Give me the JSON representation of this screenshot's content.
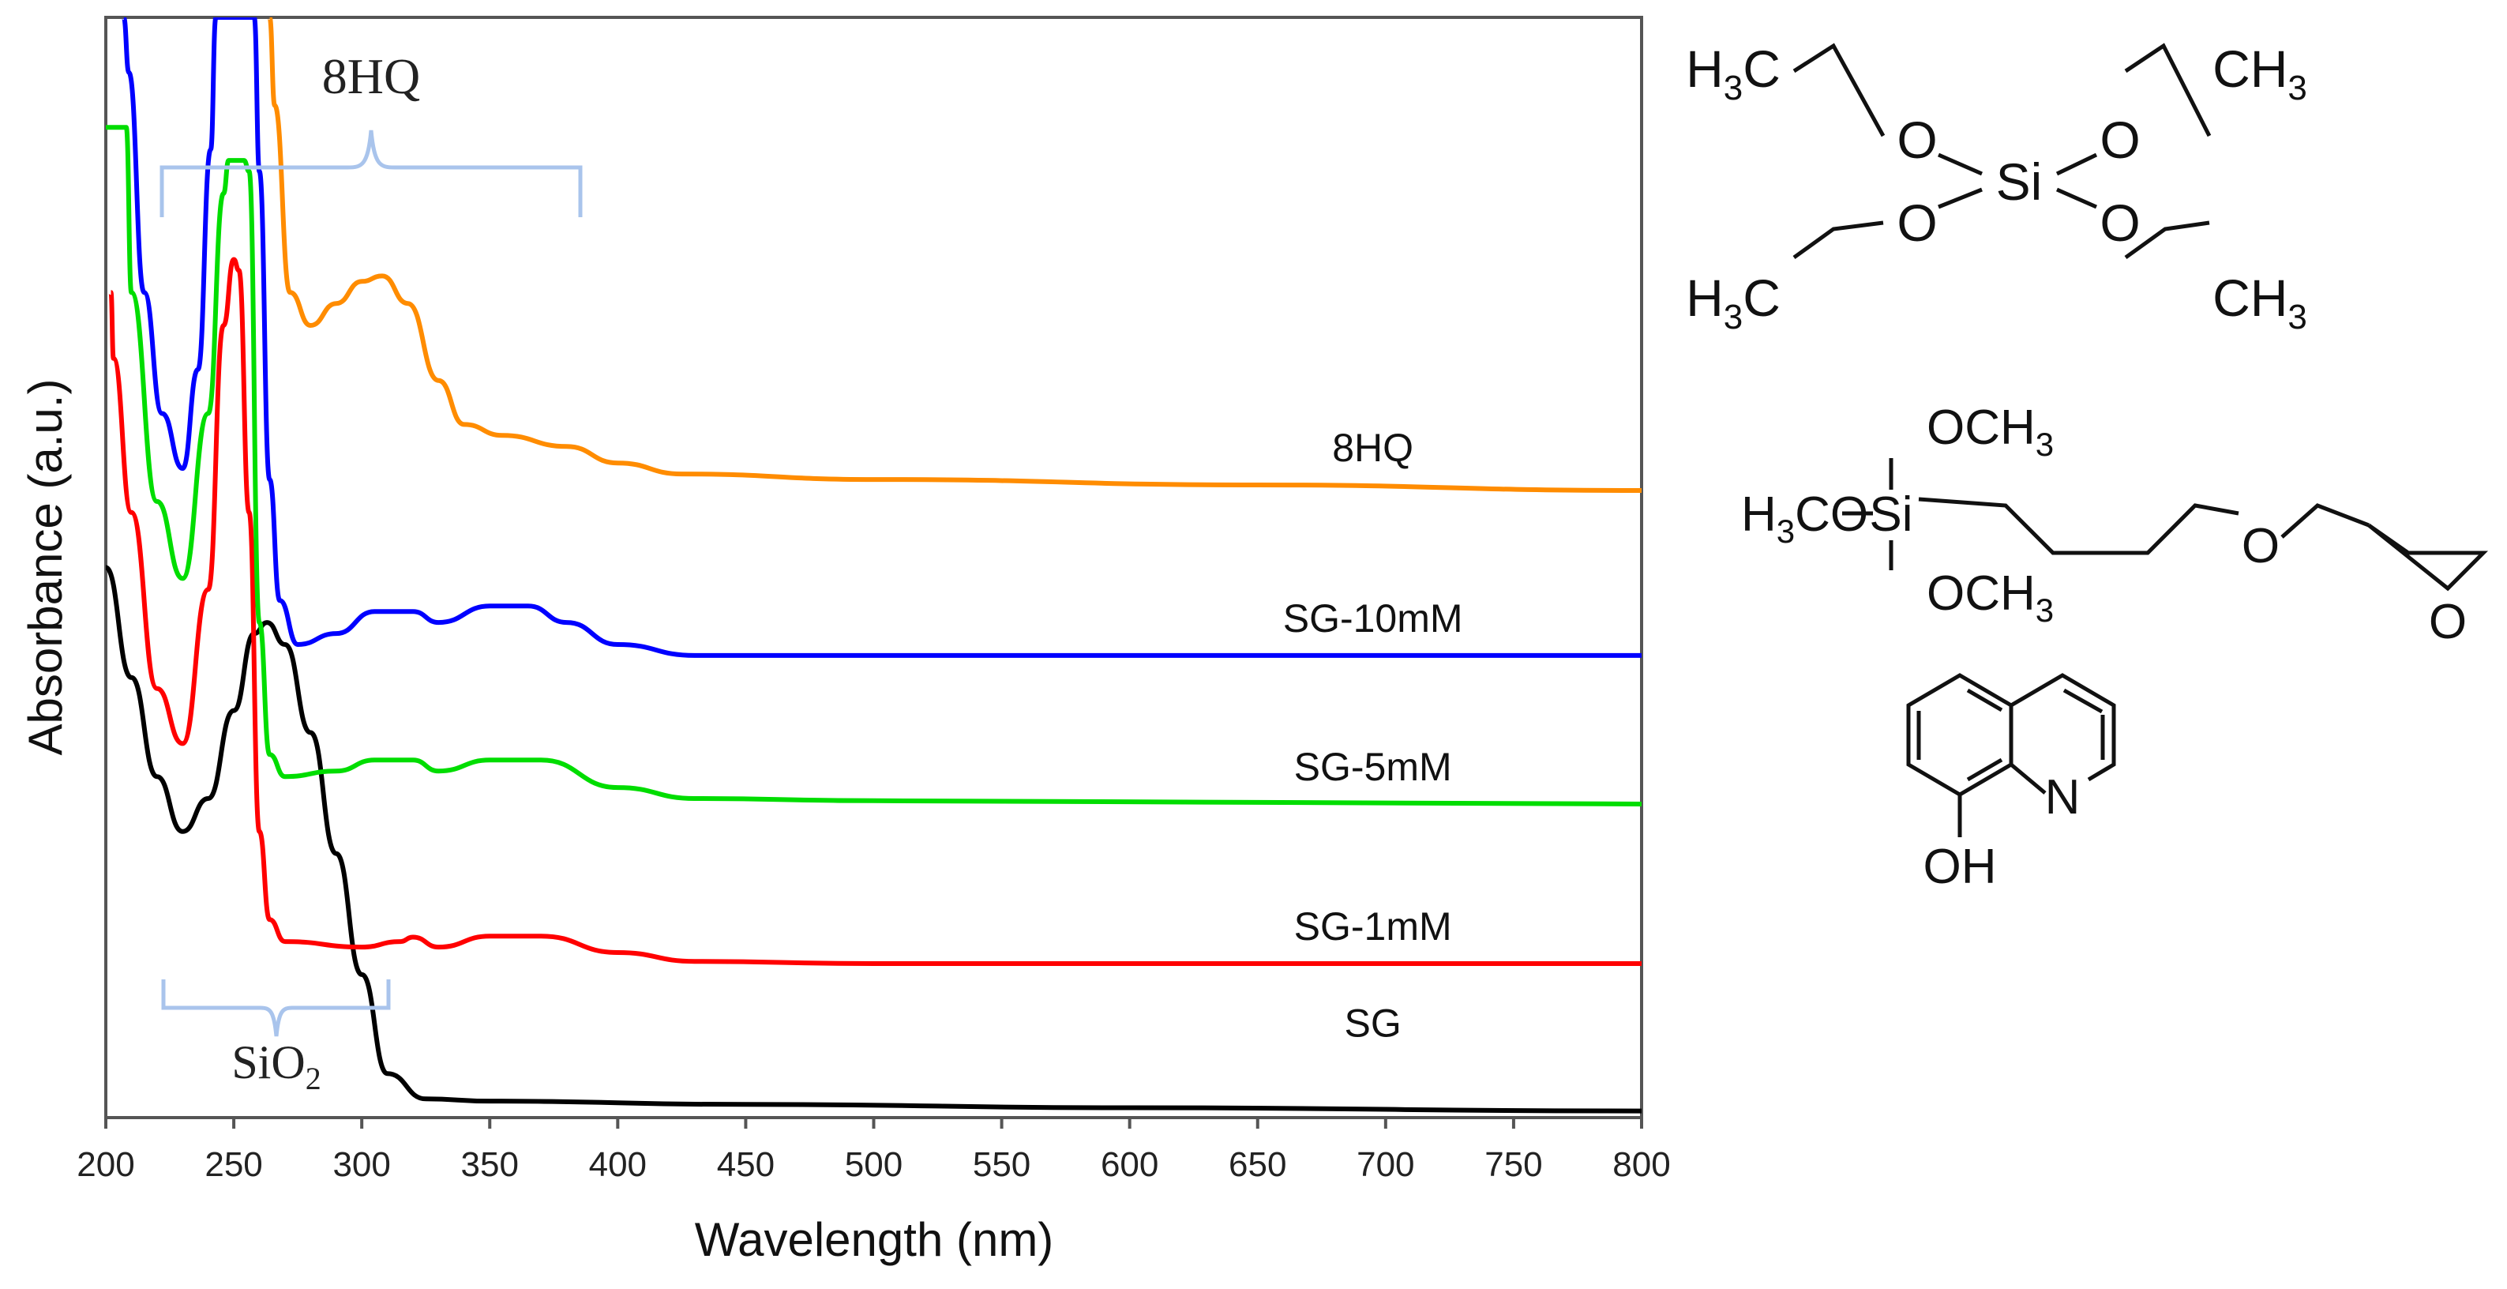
{
  "chart_data": {
    "type": "line",
    "xlabel": "Wavelength (nm)",
    "ylabel": "Absorbance (a.u.)",
    "xlim": [
      200,
      800
    ],
    "ylim": [
      0,
      100
    ],
    "x_ticks": [
      200,
      250,
      300,
      350,
      400,
      450,
      500,
      550,
      600,
      650,
      700,
      750,
      800
    ],
    "grid": false,
    "series": [
      {
        "name": "SG",
        "label": "SG",
        "color": "#000000",
        "points": [
          [
            200,
            50
          ],
          [
            210,
            40
          ],
          [
            220,
            31
          ],
          [
            230,
            26
          ],
          [
            240,
            29
          ],
          [
            250,
            37
          ],
          [
            258,
            44
          ],
          [
            263,
            45
          ],
          [
            270,
            43
          ],
          [
            280,
            35
          ],
          [
            290,
            24
          ],
          [
            300,
            13
          ],
          [
            310,
            4
          ],
          [
            325,
            1.7
          ],
          [
            350,
            1.5
          ],
          [
            450,
            1.2
          ],
          [
            600,
            0.9
          ],
          [
            800,
            0.6
          ]
        ]
      },
      {
        "name": "SG-1mM",
        "label": "SG-1mM",
        "color": "#ff0000",
        "points": [
          [
            202,
            75
          ],
          [
            203,
            69
          ],
          [
            210,
            55
          ],
          [
            220,
            39
          ],
          [
            230,
            34
          ],
          [
            240,
            48
          ],
          [
            246,
            72
          ],
          [
            250,
            78
          ],
          [
            252,
            77
          ],
          [
            256,
            55
          ],
          [
            260,
            26
          ],
          [
            264,
            18
          ],
          [
            270,
            16
          ],
          [
            300,
            15.5
          ],
          [
            315,
            16
          ],
          [
            320,
            16.4
          ],
          [
            330,
            15.5
          ],
          [
            350,
            16.5
          ],
          [
            370,
            16.5
          ],
          [
            400,
            15
          ],
          [
            430,
            14.2
          ],
          [
            500,
            14
          ],
          [
            800,
            14
          ]
        ]
      },
      {
        "name": "SG-5mM",
        "label": "SG-5mM",
        "color": "#00dd00",
        "points": [
          [
            200,
            90
          ],
          [
            208,
            90
          ],
          [
            210,
            75
          ],
          [
            220,
            56
          ],
          [
            230,
            49
          ],
          [
            240,
            64
          ],
          [
            246,
            84
          ],
          [
            248,
            87
          ],
          [
            254,
            87
          ],
          [
            256,
            86
          ],
          [
            260,
            45
          ],
          [
            264,
            33
          ],
          [
            270,
            31
          ],
          [
            290,
            31.5
          ],
          [
            305,
            32.5
          ],
          [
            320,
            32.5
          ],
          [
            330,
            31.5
          ],
          [
            350,
            32.5
          ],
          [
            370,
            32.5
          ],
          [
            400,
            30
          ],
          [
            430,
            29
          ],
          [
            500,
            28.8
          ],
          [
            800,
            28.5
          ]
        ]
      },
      {
        "name": "SG-10mM",
        "label": "SG-10mM",
        "color": "#0000ff",
        "points": [
          [
            207,
            100
          ],
          [
            209,
            95
          ],
          [
            215,
            75
          ],
          [
            222,
            64
          ],
          [
            230,
            59
          ],
          [
            236,
            68
          ],
          [
            241,
            88
          ],
          [
            243,
            100
          ],
          [
            258,
            100
          ],
          [
            260,
            86
          ],
          [
            264,
            58
          ],
          [
            268,
            47
          ],
          [
            275,
            43
          ],
          [
            290,
            44
          ],
          [
            305,
            46
          ],
          [
            320,
            46
          ],
          [
            330,
            45
          ],
          [
            350,
            46.5
          ],
          [
            365,
            46.5
          ],
          [
            380,
            45
          ],
          [
            400,
            43
          ],
          [
            430,
            42
          ],
          [
            500,
            42
          ],
          [
            800,
            42
          ]
        ]
      },
      {
        "name": "8HQ",
        "label": "8HQ",
        "color": "#ff8c00",
        "points": [
          [
            264,
            100
          ],
          [
            266,
            92
          ],
          [
            272,
            75
          ],
          [
            280,
            72
          ],
          [
            290,
            74
          ],
          [
            300,
            76
          ],
          [
            308,
            76.5
          ],
          [
            318,
            74
          ],
          [
            330,
            67
          ],
          [
            340,
            63
          ],
          [
            355,
            62
          ],
          [
            380,
            61
          ],
          [
            400,
            59.5
          ],
          [
            425,
            58.5
          ],
          [
            500,
            58
          ],
          [
            650,
            57.5
          ],
          [
            800,
            57
          ]
        ]
      }
    ],
    "annotations": [
      {
        "name": "8HQ-bracket",
        "text": "8HQ",
        "x_range": [
          222,
          385
        ],
        "color": "#a9c4ec"
      },
      {
        "name": "SiO2-bracket",
        "text_base": "SiO",
        "subscript": "2",
        "x_range": [
          222,
          310
        ],
        "color": "#a9c4ec"
      }
    ]
  },
  "structures": {
    "teos": {
      "top_left": "H",
      "sub3": "3",
      "c": "C",
      "ch": "CH",
      "o": "O",
      "si": "Si"
    },
    "gptms": {
      "h3co_h": "H",
      "sub3": "3",
      "co": "CO",
      "och": "OCH",
      "si": "Si",
      "o": "O"
    },
    "hydroxyquinoline": {
      "n": "N",
      "oh": "OH"
    }
  }
}
